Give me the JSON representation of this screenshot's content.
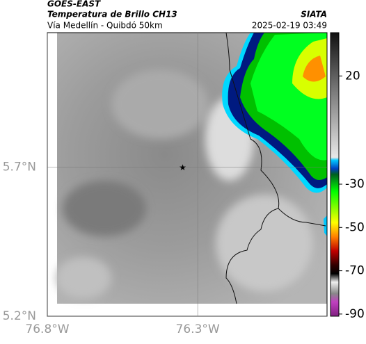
{
  "header": {
    "satellite": "GOES-EAST",
    "product": "Temperatura de Brillo CH13",
    "source": "SIATA",
    "region": "Vía Medellín - Quibdó 50km",
    "timestamp": "2025-02-19 03:49"
  },
  "map": {
    "xlim": [
      -76.8,
      -75.87
    ],
    "ylim": [
      5.2,
      6.15
    ],
    "xticks": [
      {
        "value": -76.8,
        "label": "76.8°W"
      },
      {
        "value": -76.3,
        "label": "76.3°W"
      }
    ],
    "yticks": [
      {
        "value": 5.2,
        "label": "5.2°N"
      },
      {
        "value": 5.7,
        "label": "5.7°N"
      }
    ],
    "marker": {
      "lon": -76.35,
      "lat": 5.7
    }
  },
  "colorbar": {
    "lim": [
      -91,
      40
    ],
    "ticks": [
      20,
      -30,
      -50,
      -70,
      -90
    ]
  }
}
